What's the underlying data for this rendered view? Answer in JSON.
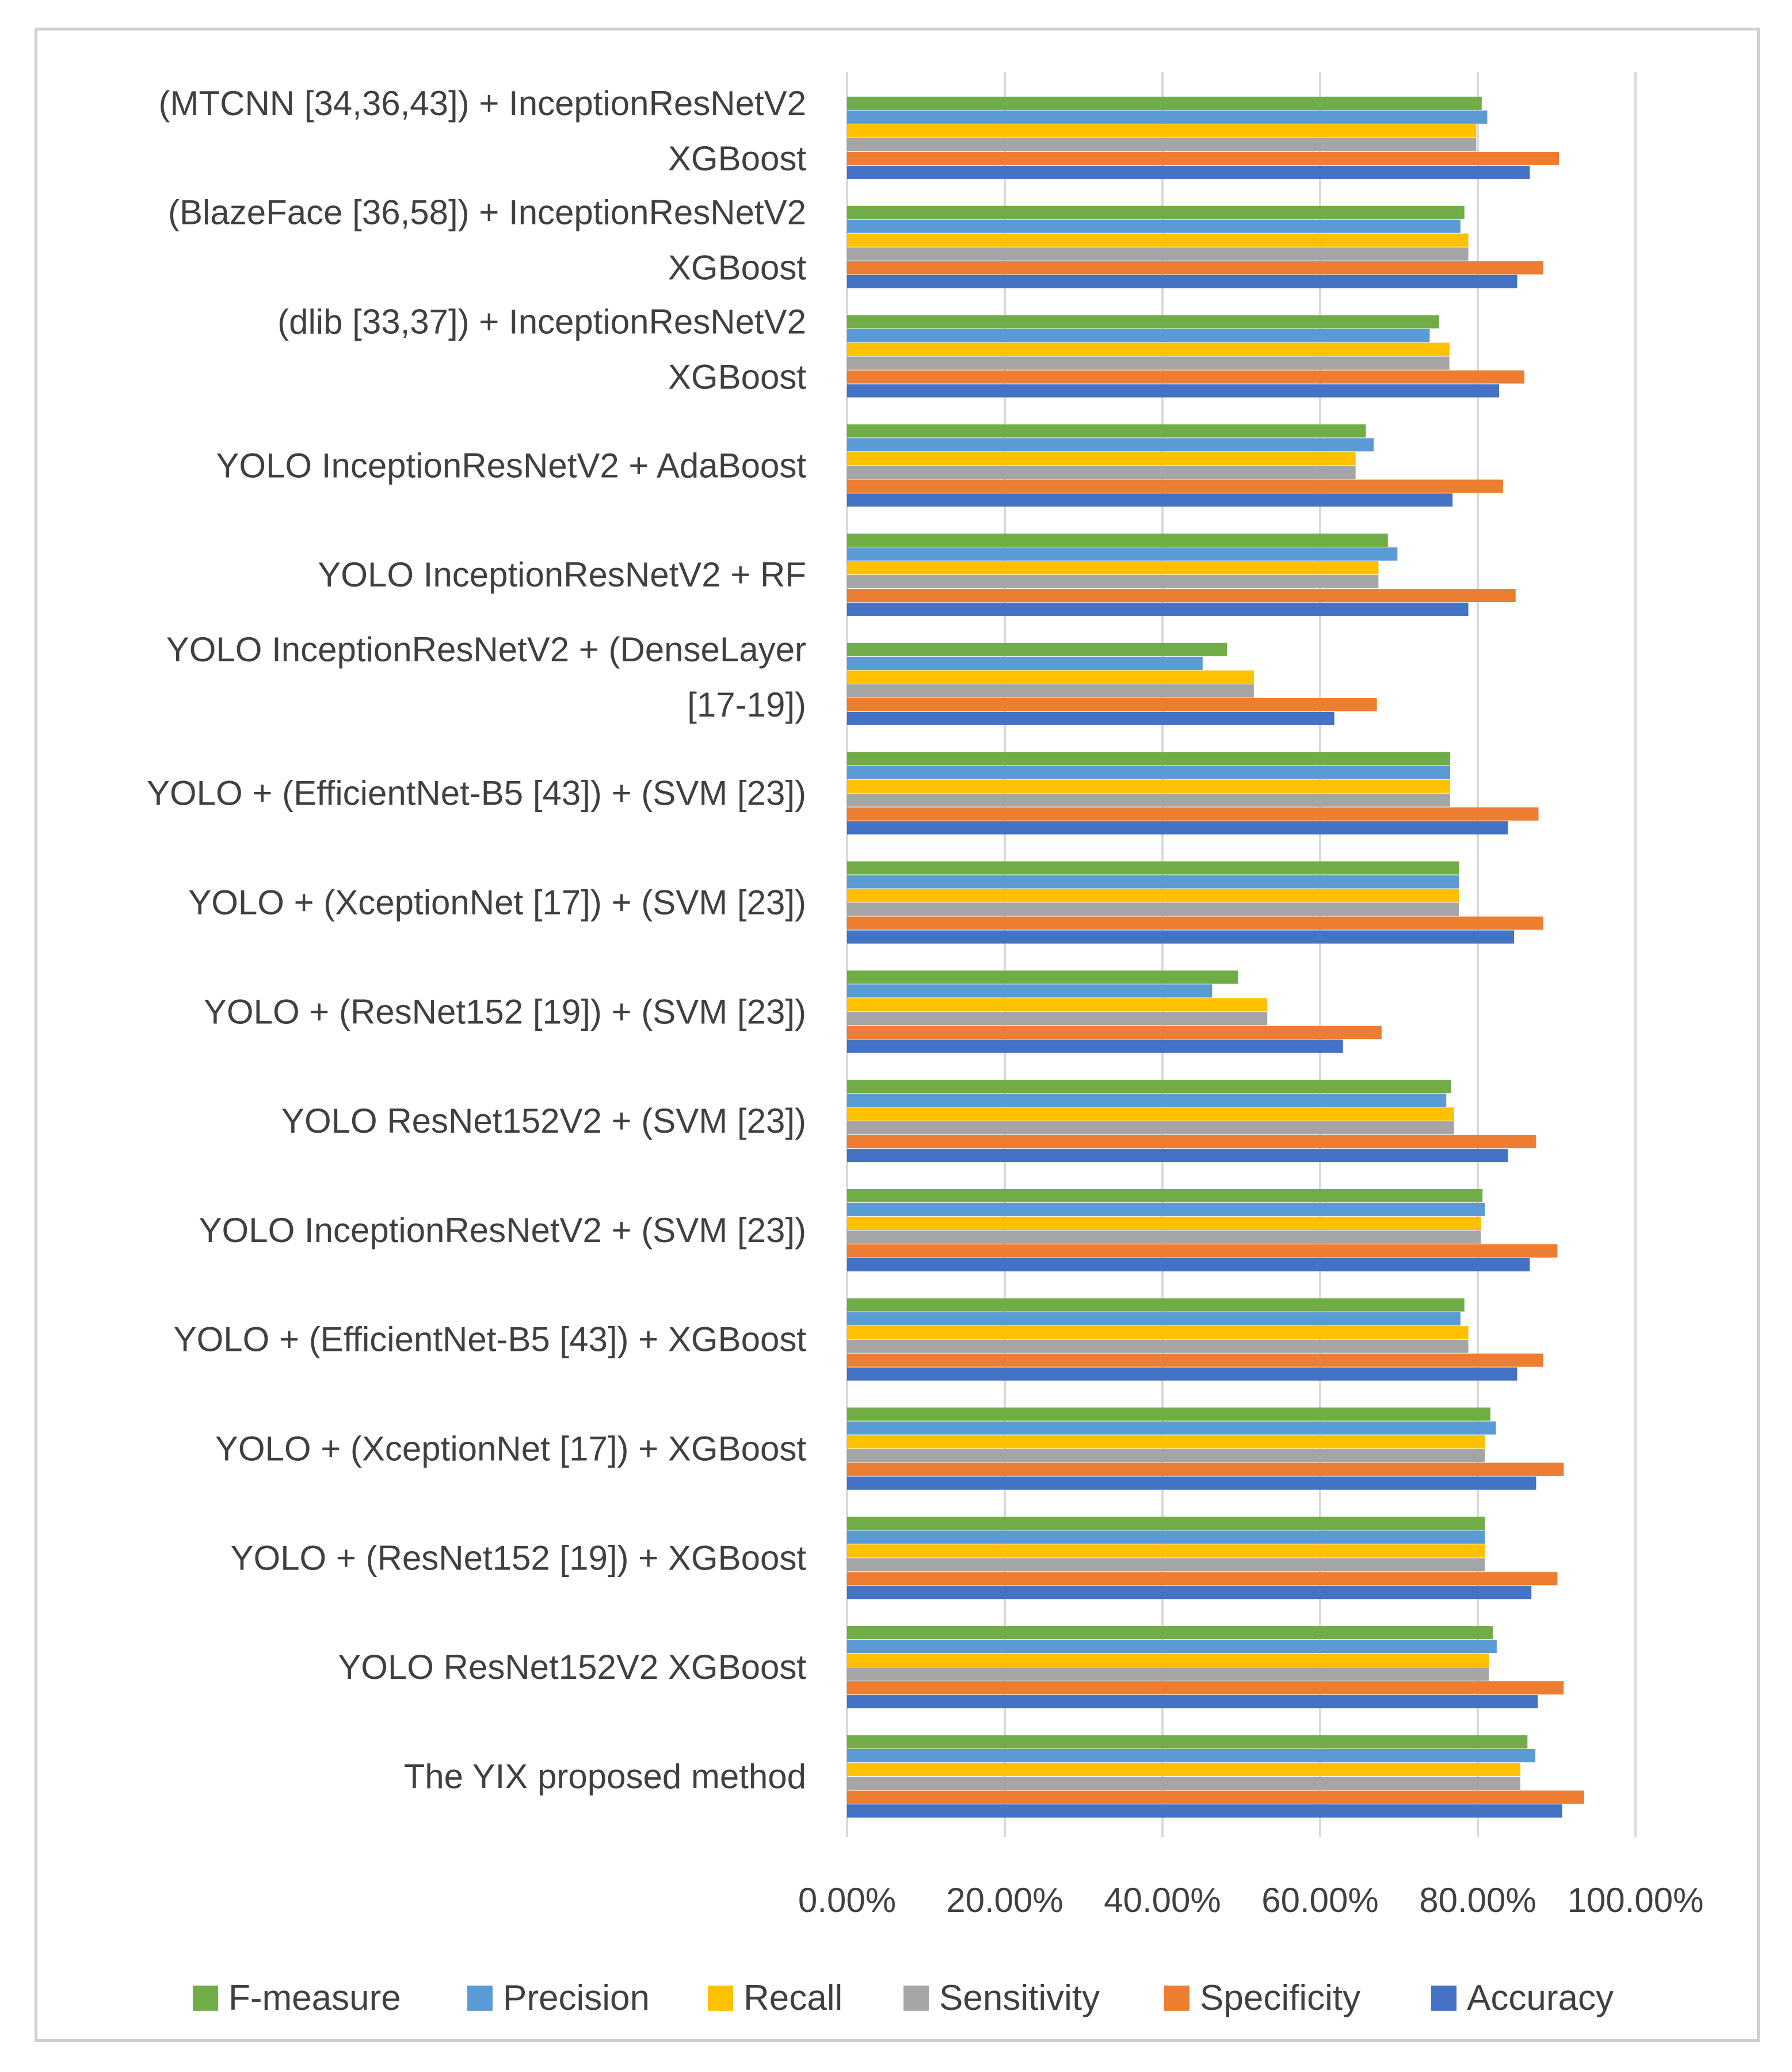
{
  "chart_data": {
    "type": "bar",
    "orientation": "horizontal",
    "title": "",
    "xlabel": "",
    "ylabel": "",
    "xlim": [
      0,
      100
    ],
    "grid": true,
    "legend_position": "bottom",
    "tick_labels": [
      "0.00%",
      "20.00%",
      "40.00%",
      "60.00%",
      "80.00%",
      "100.00%"
    ],
    "categories": [
      [
        "(MTCNN [34,36,43]) + InceptionResNetV2",
        "XGBoost"
      ],
      [
        "(BlazeFace [36,58]) + InceptionResNetV2",
        "XGBoost"
      ],
      [
        "(dlib [33,37]) + InceptionResNetV2",
        "XGBoost"
      ],
      [
        "YOLO InceptionResNetV2 + AdaBoost"
      ],
      [
        "YOLO InceptionResNetV2 + RF"
      ],
      [
        "YOLO InceptionResNetV2 + (DenseLayer",
        "[17-19])"
      ],
      [
        "YOLO + (EfficientNet-B5 [43]) + (SVM [23])"
      ],
      [
        "YOLO + (XceptionNet [17]) + (SVM [23])"
      ],
      [
        "YOLO + (ResNet152 [19]) + (SVM [23])"
      ],
      [
        "YOLO ResNet152V2 + (SVM [23])"
      ],
      [
        "YOLO InceptionResNetV2 + (SVM [23])"
      ],
      [
        "YOLO + (EfficientNet-B5 [43]) + XGBoost"
      ],
      [
        "YOLO + (XceptionNet [17]) + XGBoost"
      ],
      [
        "YOLO + (ResNet152 [19]) + XGBoost"
      ],
      [
        "YOLO ResNet152V2 XGBoost"
      ],
      [
        "The YIX proposed method"
      ]
    ],
    "series": [
      {
        "name": "F-measure",
        "color": "#70ad47",
        "values": [
          80.5,
          78.3,
          75.1,
          65.8,
          68.6,
          48.2,
          76.5,
          77.6,
          49.6,
          76.6,
          80.6,
          78.3,
          81.6,
          80.9,
          81.9,
          86.3
        ]
      },
      {
        "name": "Precision",
        "color": "#5b9bd5",
        "values": [
          81.2,
          77.8,
          73.9,
          66.8,
          69.8,
          45.1,
          76.5,
          77.6,
          46.3,
          76.0,
          80.9,
          77.8,
          82.3,
          80.9,
          82.4,
          87.3
        ]
      },
      {
        "name": "Recall",
        "color": "#ffc000",
        "values": [
          79.8,
          78.8,
          76.4,
          64.5,
          67.4,
          51.6,
          76.5,
          77.6,
          53.3,
          77.0,
          80.4,
          78.8,
          80.9,
          80.9,
          81.4,
          85.4
        ]
      },
      {
        "name": "Sensitivity",
        "color": "#a5a5a5",
        "values": [
          79.8,
          78.8,
          76.4,
          64.5,
          67.4,
          51.6,
          76.5,
          77.6,
          53.3,
          77.0,
          80.4,
          78.8,
          80.9,
          80.9,
          81.4,
          85.4
        ]
      },
      {
        "name": "Specificity",
        "color": "#ed7d31",
        "values": [
          90.3,
          88.3,
          85.9,
          83.2,
          84.8,
          67.2,
          87.7,
          88.3,
          67.8,
          87.4,
          90.1,
          88.3,
          90.9,
          90.1,
          90.9,
          93.5
        ]
      },
      {
        "name": "Accuracy",
        "color": "#4472c4",
        "values": [
          86.6,
          85.0,
          82.7,
          76.8,
          78.8,
          61.8,
          83.8,
          84.6,
          62.9,
          83.8,
          86.6,
          85.0,
          87.4,
          86.8,
          87.6,
          90.7
        ]
      }
    ],
    "legend": [
      "F-measure",
      "Precision",
      "Recall",
      "Sensitivity",
      "Specificity",
      "Accuracy"
    ]
  }
}
